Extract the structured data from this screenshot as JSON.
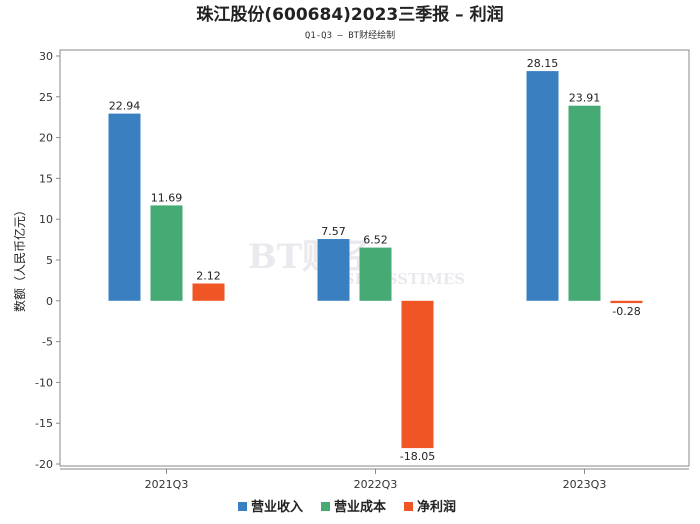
{
  "chart_data": {
    "type": "bar",
    "title": "珠江股份(600684)2023三季报 – 利润",
    "subtitle": "Q1-Q3 – BT财经绘制",
    "xlabel": "",
    "ylabel": "数额（人民币亿元）",
    "ylim": [
      -20,
      30
    ],
    "yticks": [
      30,
      25,
      20,
      15,
      10,
      5,
      0,
      -5,
      -10,
      -15,
      -20
    ],
    "categories": [
      "2021Q3",
      "2022Q3",
      "2023Q3"
    ],
    "series": [
      {
        "name": "营业收入",
        "color": "#3a80c1",
        "values": [
          22.94,
          7.57,
          28.15
        ]
      },
      {
        "name": "营业成本",
        "color": "#45aa74",
        "values": [
          11.69,
          6.52,
          23.91
        ]
      },
      {
        "name": "净利润",
        "color": "#ef5525",
        "values": [
          2.12,
          -18.05,
          -0.28
        ]
      }
    ],
    "data_labels": [
      [
        "22.94",
        "7.57",
        "28.15"
      ],
      [
        "11.69",
        "6.52",
        "23.91"
      ],
      [
        "2.12",
        "-18.05",
        "-0.28"
      ]
    ],
    "grid": false,
    "legend_position": "bottom",
    "watermark": {
      "brand": "BT财经",
      "text": "BUSINESSTIMES"
    }
  }
}
